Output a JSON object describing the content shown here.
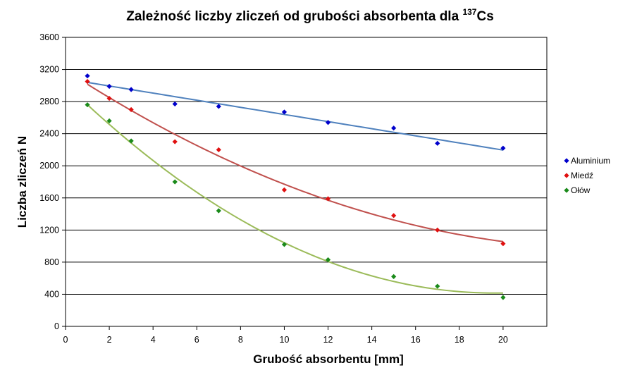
{
  "chart_data": {
    "type": "scatter",
    "title": {
      "main": "Zależność liczby zliczeń od grubości absorbenta dla ",
      "superscript": "137",
      "suffix": "Cs"
    },
    "xlabel": "Grubość absorbentu [mm]",
    "ylabel": "Liczba zliczeń N",
    "xlim": [
      0,
      22
    ],
    "ylim": [
      0,
      3600
    ],
    "xticks": [
      0,
      2,
      4,
      6,
      8,
      10,
      12,
      14,
      16,
      18,
      20
    ],
    "yticks": [
      0,
      400,
      800,
      1200,
      1600,
      2000,
      2400,
      2800,
      3200,
      3600
    ],
    "grid": "horizontal",
    "legend_position": "right",
    "series": [
      {
        "name": "Aluminium",
        "color": "#0000cc",
        "trend_color": "#4f81bd",
        "trend": "linear",
        "x": [
          1,
          2,
          3,
          5,
          7,
          10,
          12,
          15,
          17,
          20
        ],
        "y": [
          3120,
          2990,
          2950,
          2770,
          2740,
          2670,
          2540,
          2470,
          2280,
          2220
        ]
      },
      {
        "name": "Miedź",
        "color": "#e01010",
        "trend_color": "#c0504d",
        "trend": "quadratic",
        "x": [
          1,
          2,
          3,
          5,
          7,
          10,
          12,
          15,
          17,
          20
        ],
        "y": [
          3050,
          2840,
          2700,
          2300,
          2200,
          1700,
          1590,
          1380,
          1200,
          1030
        ]
      },
      {
        "name": "Ołów",
        "color": "#1a8a1a",
        "trend_color": "#9bbb59",
        "trend": "quadratic",
        "x": [
          1,
          2,
          3,
          5,
          7,
          10,
          12,
          15,
          17,
          20
        ],
        "y": [
          2760,
          2560,
          2310,
          1800,
          1440,
          1020,
          830,
          620,
          500,
          360
        ]
      }
    ]
  }
}
